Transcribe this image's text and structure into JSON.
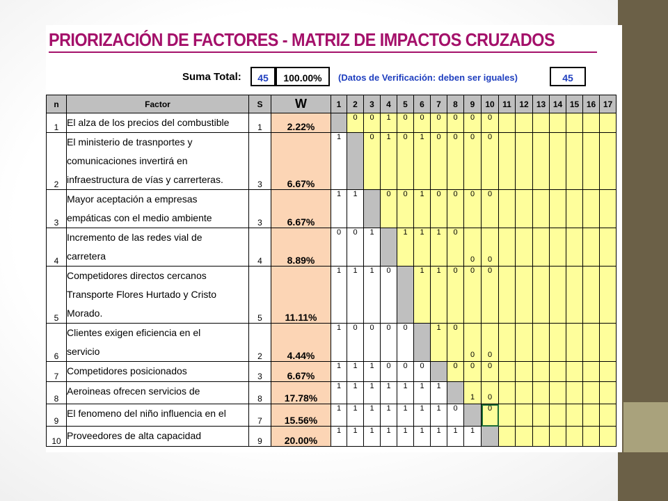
{
  "title": "PRIORIZACIÓN DE FACTORES - MATRIZ DE IMPACTOS CRUZADOS",
  "summary": {
    "label": "Suma Total:",
    "count": "45",
    "percent": "100.00%",
    "verification_note": "(Datos de Verificación: deben ser iguales)",
    "verification_value": "45"
  },
  "headers": {
    "n": "n",
    "factor": "Factor",
    "s": "S",
    "w": "W",
    "columns": [
      "1",
      "2",
      "3",
      "4",
      "5",
      "6",
      "7",
      "8",
      "9",
      "10",
      "11",
      "12",
      "13",
      "14",
      "15",
      "16",
      "17"
    ]
  },
  "rows": [
    {
      "n": "1",
      "lines": [
        "El alza de los precios del combustible"
      ],
      "s": "1",
      "w": "2.22%",
      "cells": [
        "",
        "0",
        "0",
        "1",
        "0",
        "0",
        "0",
        "0",
        "0",
        "0"
      ]
    },
    {
      "n": "2",
      "lines": [
        "El ministerio de trasnportes y",
        "comunicaciones invertirá en",
        "infraestructura de vías y carrerteras."
      ],
      "s": "3",
      "w": "6.67%",
      "cells": [
        "1",
        "",
        "0",
        "1",
        "0",
        "1",
        "0",
        "0",
        "0",
        "0"
      ]
    },
    {
      "n": "3",
      "lines": [
        "Mayor aceptación a empresas",
        "empáticas con el medio ambiente"
      ],
      "s": "3",
      "w": "6.67%",
      "cells": [
        "1",
        "1",
        "",
        "0",
        "0",
        "1",
        "0",
        "0",
        "0",
        "0"
      ]
    },
    {
      "n": "4",
      "lines": [
        "Incremento de las redes vial de",
        "carretera"
      ],
      "s": "4",
      "w": "8.89%",
      "cells": [
        "0",
        "0",
        "1",
        "",
        "1",
        "1",
        "1",
        "0",
        "0",
        "0"
      ]
    },
    {
      "n": "5",
      "lines": [
        "Competidores directos cercanos",
        "Transporte Flores Hurtado y Cristo",
        "Morado."
      ],
      "s": "5",
      "w": "11.11%",
      "cells": [
        "1",
        "1",
        "1",
        "0",
        "",
        "1",
        "1",
        "0",
        "0",
        "0"
      ]
    },
    {
      "n": "6",
      "lines": [
        "Clientes exigen eficiencia en el",
        "servicio"
      ],
      "s": "2",
      "w": "4.44%",
      "cells": [
        "1",
        "0",
        "0",
        "0",
        "0",
        "",
        "1",
        "0",
        "0",
        "0"
      ]
    },
    {
      "n": "7",
      "lines": [
        "Competidores posicionados"
      ],
      "s": "3",
      "w": "6.67%",
      "cells": [
        "1",
        "1",
        "1",
        "0",
        "0",
        "0",
        "",
        "0",
        "0",
        "0"
      ]
    },
    {
      "n": "8",
      "lines": [
        "Aeroineas ofrecen servicios de"
      ],
      "s": "8",
      "w": "17.78%",
      "cells": [
        "1",
        "1",
        "1",
        "1",
        "1",
        "1",
        "1",
        "",
        "1",
        "0"
      ]
    },
    {
      "n": "9",
      "lines": [
        "El fenomeno del niño influencia en el"
      ],
      "s": "7",
      "w": "15.56%",
      "cells": [
        "1",
        "1",
        "1",
        "1",
        "1",
        "1",
        "1",
        "0",
        "",
        "0"
      ]
    },
    {
      "n": "10",
      "lines": [
        "Proveedores de alta capacidad"
      ],
      "s": "9",
      "w": "20.00%",
      "cells": [
        "1",
        "1",
        "1",
        "1",
        "1",
        "1",
        "1",
        "1",
        "1",
        ""
      ]
    }
  ],
  "colors": {
    "title": "#a4106a",
    "accent_blue": "#1f3fbf",
    "weight_fill": "#fcd5b5",
    "matrix_yellow": "#fefe9b",
    "header_gray": "#bfbfbf",
    "slide_bar_dark": "#6b6047",
    "slide_bar_light": "#a9a27c"
  }
}
